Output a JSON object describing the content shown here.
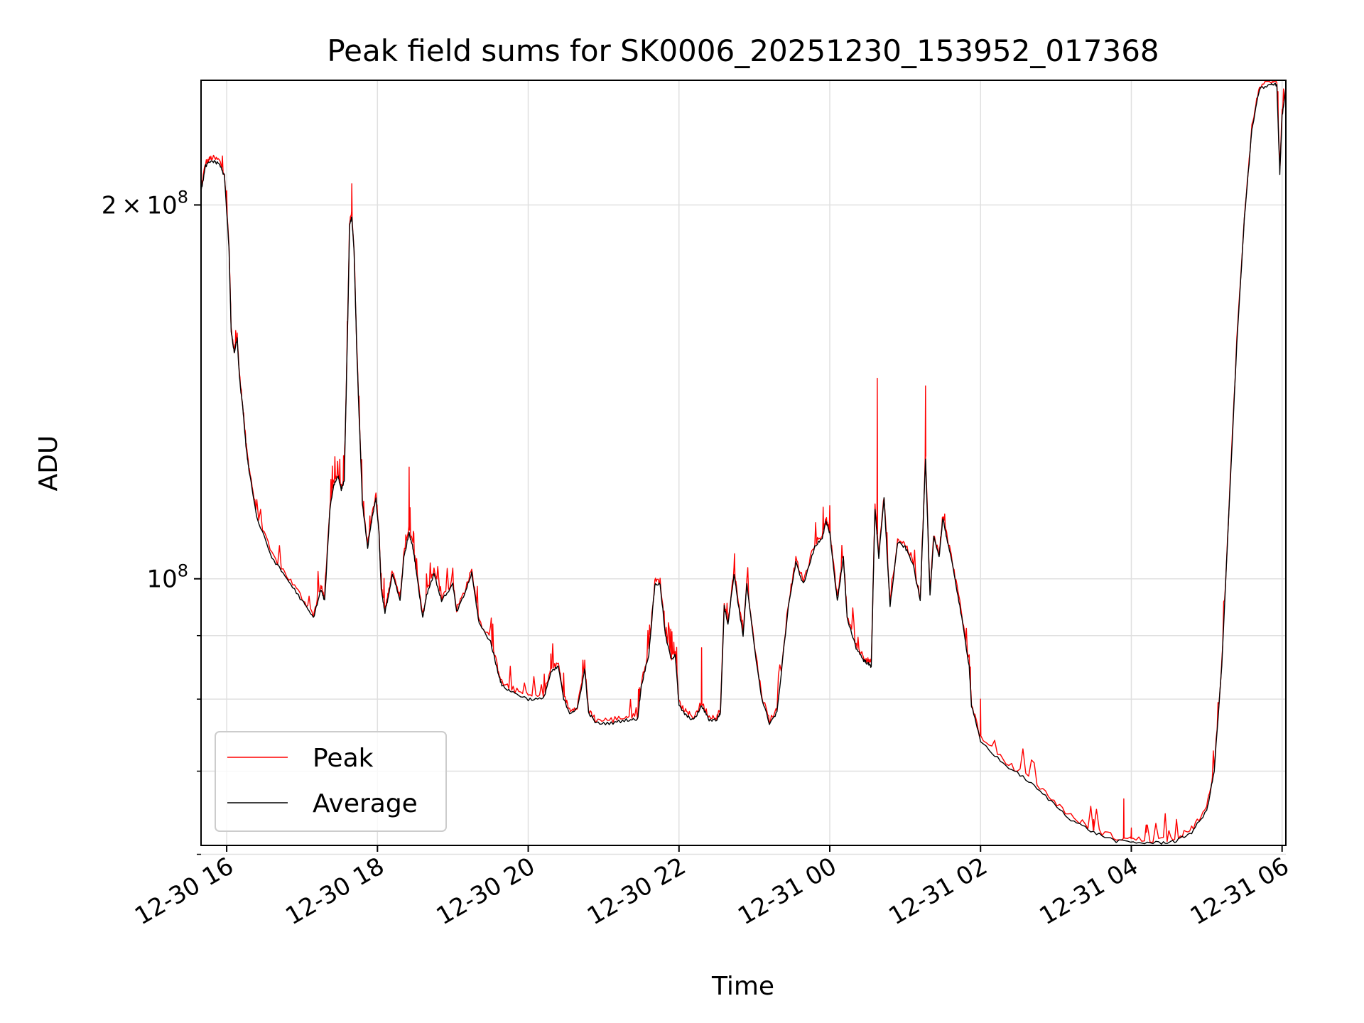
{
  "chart_data": {
    "type": "line",
    "title": "Peak field sums for SK0006_20251230_153952_017368",
    "xlabel": "Time",
    "ylabel": "ADU",
    "yscale": "log",
    "ylim": [
      61000000,
      252000000
    ],
    "xlim_hours": [
      15.66,
      30.05
    ],
    "grid": true,
    "legend_position": "lower-left",
    "x_ticks": [
      {
        "hour": 16,
        "label": "12-30 16"
      },
      {
        "hour": 18,
        "label": "12-30 18"
      },
      {
        "hour": 20,
        "label": "12-30 20"
      },
      {
        "hour": 22,
        "label": "12-30 22"
      },
      {
        "hour": 24,
        "label": "12-31 00"
      },
      {
        "hour": 26,
        "label": "12-31 02"
      },
      {
        "hour": 28,
        "label": "12-31 04"
      },
      {
        "hour": 30,
        "label": "12-31 06"
      }
    ],
    "y_major_ticks": [
      {
        "value": 100000000,
        "base": "10",
        "exp": "8",
        "coef": ""
      },
      {
        "value": 200000000,
        "base": "10",
        "exp": "8",
        "coef": "2"
      }
    ],
    "y_minor_ticks": [
      60000000,
      70000000,
      80000000,
      90000000
    ],
    "series": [
      {
        "name": "Peak",
        "color": "#ff0000"
      },
      {
        "name": "Average",
        "color": "#000000"
      }
    ],
    "average_points": [
      [
        15.66,
        205000000
      ],
      [
        15.72,
        215000000
      ],
      [
        15.8,
        217000000
      ],
      [
        15.9,
        216000000
      ],
      [
        15.97,
        211000000
      ],
      [
        16.03,
        185000000
      ],
      [
        16.06,
        158000000
      ],
      [
        16.1,
        152000000
      ],
      [
        16.14,
        156000000
      ],
      [
        16.17,
        145000000
      ],
      [
        16.22,
        136000000
      ],
      [
        16.26,
        127000000
      ],
      [
        16.3,
        122000000
      ],
      [
        16.4,
        112000000
      ],
      [
        16.6,
        104000000
      ],
      [
        16.8,
        100000000
      ],
      [
        17.0,
        96000000
      ],
      [
        17.15,
        93000000
      ],
      [
        17.25,
        98000000
      ],
      [
        17.3,
        96000000
      ],
      [
        17.37,
        114000000
      ],
      [
        17.42,
        119000000
      ],
      [
        17.48,
        121000000
      ],
      [
        17.52,
        118000000
      ],
      [
        17.56,
        120000000
      ],
      [
        17.6,
        155000000
      ],
      [
        17.63,
        192000000
      ],
      [
        17.66,
        196000000
      ],
      [
        17.69,
        183000000
      ],
      [
        17.73,
        150000000
      ],
      [
        17.8,
        115000000
      ],
      [
        17.87,
        106000000
      ],
      [
        17.93,
        112000000
      ],
      [
        17.98,
        116000000
      ],
      [
        18.02,
        109000000
      ],
      [
        18.05,
        98000000
      ],
      [
        18.1,
        94000000
      ],
      [
        18.15,
        97000000
      ],
      [
        18.2,
        101000000
      ],
      [
        18.3,
        96000000
      ],
      [
        18.35,
        104000000
      ],
      [
        18.42,
        109000000
      ],
      [
        18.47,
        106000000
      ],
      [
        18.52,
        101000000
      ],
      [
        18.6,
        93000000
      ],
      [
        18.65,
        97000000
      ],
      [
        18.75,
        101000000
      ],
      [
        18.85,
        96000000
      ],
      [
        19.0,
        99000000
      ],
      [
        19.05,
        94000000
      ],
      [
        19.15,
        97000000
      ],
      [
        19.25,
        101000000
      ],
      [
        19.35,
        92000000
      ],
      [
        19.5,
        89000000
      ],
      [
        19.58,
        85000000
      ],
      [
        19.65,
        82000000
      ],
      [
        19.8,
        81000000
      ],
      [
        20.0,
        80000000
      ],
      [
        20.2,
        80000000
      ],
      [
        20.3,
        84000000
      ],
      [
        20.4,
        85000000
      ],
      [
        20.47,
        80000000
      ],
      [
        20.55,
        78000000
      ],
      [
        20.65,
        78500000
      ],
      [
        20.75,
        84500000
      ],
      [
        20.8,
        78000000
      ],
      [
        20.9,
        76500000
      ],
      [
        21.1,
        76500000
      ],
      [
        21.3,
        77000000
      ],
      [
        21.45,
        77000000
      ],
      [
        21.5,
        82000000
      ],
      [
        21.6,
        87000000
      ],
      [
        21.68,
        99000000
      ],
      [
        21.75,
        99000000
      ],
      [
        21.82,
        90000000
      ],
      [
        21.9,
        86000000
      ],
      [
        21.95,
        87000000
      ],
      [
        22.0,
        79000000
      ],
      [
        22.1,
        77500000
      ],
      [
        22.2,
        77000000
      ],
      [
        22.3,
        79000000
      ],
      [
        22.4,
        77000000
      ],
      [
        22.5,
        77000000
      ],
      [
        22.55,
        78000000
      ],
      [
        22.6,
        95000000
      ],
      [
        22.65,
        92000000
      ],
      [
        22.73,
        101000000
      ],
      [
        22.78,
        96000000
      ],
      [
        22.85,
        90000000
      ],
      [
        22.9,
        99000000
      ],
      [
        23.0,
        88000000
      ],
      [
        23.1,
        80000000
      ],
      [
        23.2,
        76500000
      ],
      [
        23.3,
        78000000
      ],
      [
        23.45,
        95000000
      ],
      [
        23.55,
        103000000
      ],
      [
        23.65,
        99000000
      ],
      [
        23.8,
        106000000
      ],
      [
        23.9,
        108000000
      ],
      [
        23.95,
        111000000
      ],
      [
        24.0,
        109000000
      ],
      [
        24.05,
        102000000
      ],
      [
        24.1,
        96000000
      ],
      [
        24.18,
        104000000
      ],
      [
        24.23,
        93000000
      ],
      [
        24.35,
        88000000
      ],
      [
        24.45,
        86000000
      ],
      [
        24.5,
        85500000
      ],
      [
        24.55,
        85000000
      ],
      [
        24.6,
        114000000
      ],
      [
        24.65,
        104000000
      ],
      [
        24.72,
        116000000
      ],
      [
        24.8,
        95000000
      ],
      [
        24.9,
        107000000
      ],
      [
        25.0,
        106000000
      ],
      [
        25.1,
        103000000
      ],
      [
        25.2,
        96000000
      ],
      [
        25.27,
        125000000
      ],
      [
        25.33,
        97000000
      ],
      [
        25.38,
        108000000
      ],
      [
        25.45,
        104000000
      ],
      [
        25.5,
        112000000
      ],
      [
        25.55,
        108000000
      ],
      [
        25.65,
        101000000
      ],
      [
        25.75,
        93000000
      ],
      [
        25.85,
        85000000
      ],
      [
        25.88,
        79000000
      ],
      [
        26.0,
        74000000
      ],
      [
        26.3,
        71000000
      ],
      [
        26.6,
        69000000
      ],
      [
        26.9,
        66500000
      ],
      [
        27.2,
        64000000
      ],
      [
        27.5,
        62500000
      ],
      [
        27.8,
        61500000
      ],
      [
        28.1,
        61300000
      ],
      [
        28.4,
        61300000
      ],
      [
        28.6,
        61500000
      ],
      [
        28.8,
        62500000
      ],
      [
        29.0,
        65000000
      ],
      [
        29.1,
        70000000
      ],
      [
        29.2,
        85000000
      ],
      [
        29.3,
        115000000
      ],
      [
        29.4,
        155000000
      ],
      [
        29.5,
        195000000
      ],
      [
        29.6,
        230000000
      ],
      [
        29.7,
        248000000
      ],
      [
        29.85,
        250000000
      ],
      [
        29.93,
        250000000
      ],
      [
        29.97,
        212000000
      ],
      [
        30.0,
        236000000
      ],
      [
        30.05,
        248000000
      ]
    ],
    "peak_spikes": [
      [
        17.66,
        208000000
      ],
      [
        18.42,
        123000000
      ],
      [
        20.3,
        87000000
      ],
      [
        20.75,
        86000000
      ],
      [
        22.3,
        88000000
      ],
      [
        24.63,
        145000000
      ],
      [
        25.27,
        143000000
      ],
      [
        26.0,
        80000000
      ],
      [
        27.5,
        64000000
      ],
      [
        27.9,
        66500000
      ],
      [
        28.0,
        63000000
      ],
      [
        28.2,
        62500000
      ],
      [
        28.5,
        62500000
      ]
    ]
  },
  "legend": {
    "peak_label": "Peak",
    "average_label": "Average"
  }
}
